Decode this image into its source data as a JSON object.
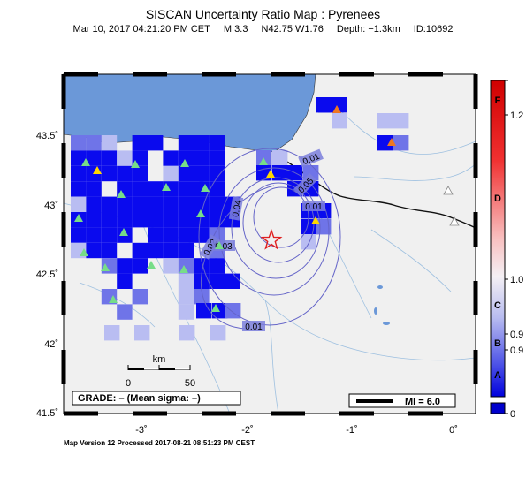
{
  "header": {
    "title": "SISCAN Uncertainty Ratio Map : Pyrenees",
    "date": "Mar 10, 2017 04:21:20 PM CET",
    "magnitude": "M 3.3",
    "location": "N42.75 W1.76",
    "depth": "Depth: −1.3km",
    "event_id": "ID:10692"
  },
  "axes": {
    "lon_ticks": [
      "-3˚",
      "-2˚",
      "-1˚",
      "0˚"
    ],
    "lat_ticks": [
      "43.5˚",
      "43˚",
      "42.5˚",
      "42˚",
      "41.5˚"
    ]
  },
  "contour_labels": [
    "0.01",
    "0.02",
    "0.03",
    "0.04",
    "0.05",
    "0.01",
    "0.01"
  ],
  "scale_bar": {
    "unit": "km",
    "ticks": [
      "0",
      "50"
    ]
  },
  "grade_box": "GRADE: – (Mean sigma: –)",
  "mi_box": "MI = 6.0",
  "colorbar": {
    "letters": [
      "F",
      "D",
      "C",
      "B",
      "A"
    ],
    "values": [
      "1.2",
      "1.0",
      "0.9",
      "0.9",
      "0"
    ]
  },
  "footer": "Map Version 12 Processed 2017-08-21 08:51:23 PM CEST",
  "colors": {
    "sea": "#6b98d8",
    "land": "#f0f0f0",
    "strong_cell": "#0a0aee",
    "mid_cell": "#6f74e8",
    "light_cell": "#b9bdf2",
    "contour": "#6464c8",
    "epicenter": "#e02020",
    "station_green": "#77dd88",
    "station_yellow": "#ffd700",
    "station_orange": "#ee7722"
  }
}
